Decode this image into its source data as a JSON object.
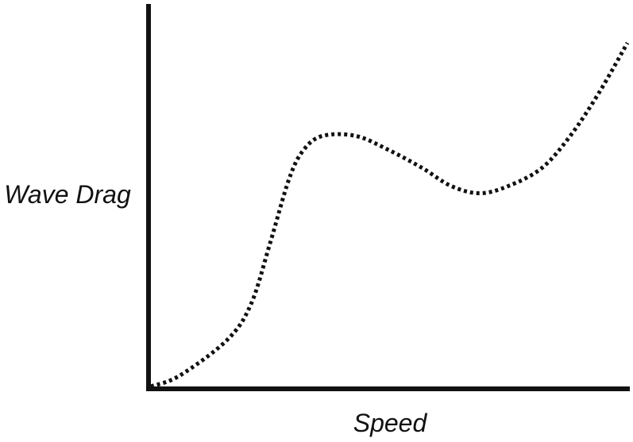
{
  "chart_data": {
    "type": "line",
    "title": "",
    "xlabel": "Speed",
    "ylabel": "Wave Drag",
    "xlim": [
      0,
      100
    ],
    "ylim": [
      0,
      100
    ],
    "grid": false,
    "tick_labels": false,
    "legend": "none",
    "series": [
      {
        "line_style": "dotted",
        "color": "#111111",
        "points": [
          [
            0,
            0
          ],
          [
            6,
            3
          ],
          [
            16,
            13
          ],
          [
            21,
            23
          ],
          [
            25,
            40
          ],
          [
            29,
            58
          ],
          [
            32,
            66
          ],
          [
            36,
            70
          ],
          [
            43,
            70
          ],
          [
            50,
            66
          ],
          [
            57,
            61
          ],
          [
            63,
            56
          ],
          [
            69,
            54
          ],
          [
            75,
            56
          ],
          [
            82,
            61
          ],
          [
            88,
            70
          ],
          [
            94,
            82
          ],
          [
            100,
            96
          ]
        ]
      }
    ]
  },
  "colors": {
    "axis": "#111111",
    "line": "#111111",
    "background": "#ffffff"
  }
}
